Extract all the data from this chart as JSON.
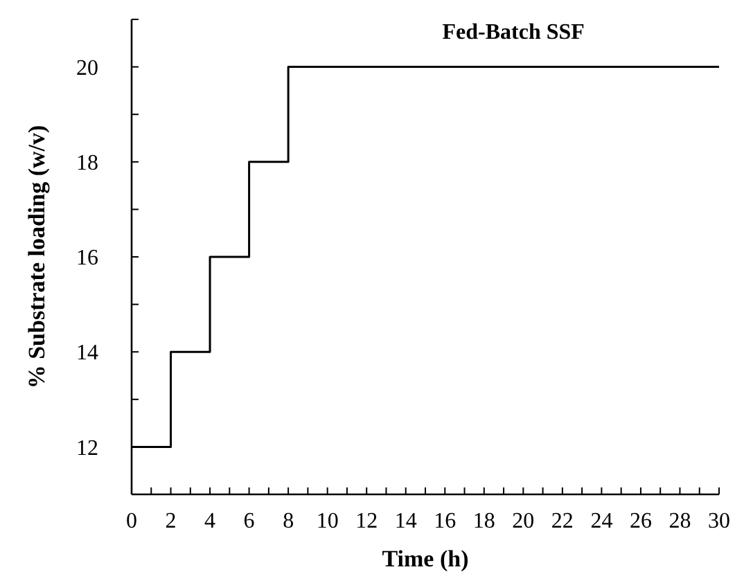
{
  "chart_data": {
    "type": "step",
    "title": "Fed-Batch SSF",
    "xlabel": "Time (h)",
    "ylabel": "% Substrate loading (w/v)",
    "x": [
      0,
      2,
      4,
      6,
      8,
      30
    ],
    "values": [
      12,
      14,
      16,
      18,
      20,
      20
    ],
    "color": "#000000",
    "xlim": [
      0,
      30
    ],
    "ylim": [
      11,
      21
    ],
    "xticks": [
      0,
      {
        "value": 1,
        "label": null
      },
      2,
      {
        "value": 3,
        "label": null
      },
      4,
      {
        "value": 5,
        "label": null
      },
      6,
      {
        "value": 7,
        "label": null
      },
      8,
      {
        "value": 9,
        "label": null
      },
      10,
      {
        "value": 11,
        "label": null
      },
      12,
      {
        "value": 13,
        "label": null
      },
      14,
      {
        "value": 15,
        "label": null
      },
      16,
      {
        "value": 17,
        "label": null
      },
      18,
      {
        "value": 19,
        "label": null
      },
      20,
      {
        "value": 21,
        "label": null
      },
      22,
      {
        "value": 23,
        "label": null
      },
      24,
      {
        "value": 25,
        "label": null
      },
      26,
      {
        "value": 27,
        "label": null
      },
      28,
      {
        "value": 29,
        "label": null
      },
      30
    ],
    "yticks": [
      {
        "value": 11,
        "label": null
      },
      12,
      {
        "value": 13,
        "label": null
      },
      14,
      {
        "value": 15,
        "label": null
      },
      16,
      {
        "value": 17,
        "label": null
      },
      18,
      {
        "value": 19,
        "label": null
      },
      20,
      {
        "value": 21,
        "label": null
      }
    ],
    "grid": false,
    "line_style": "solid",
    "marker": "none"
  }
}
